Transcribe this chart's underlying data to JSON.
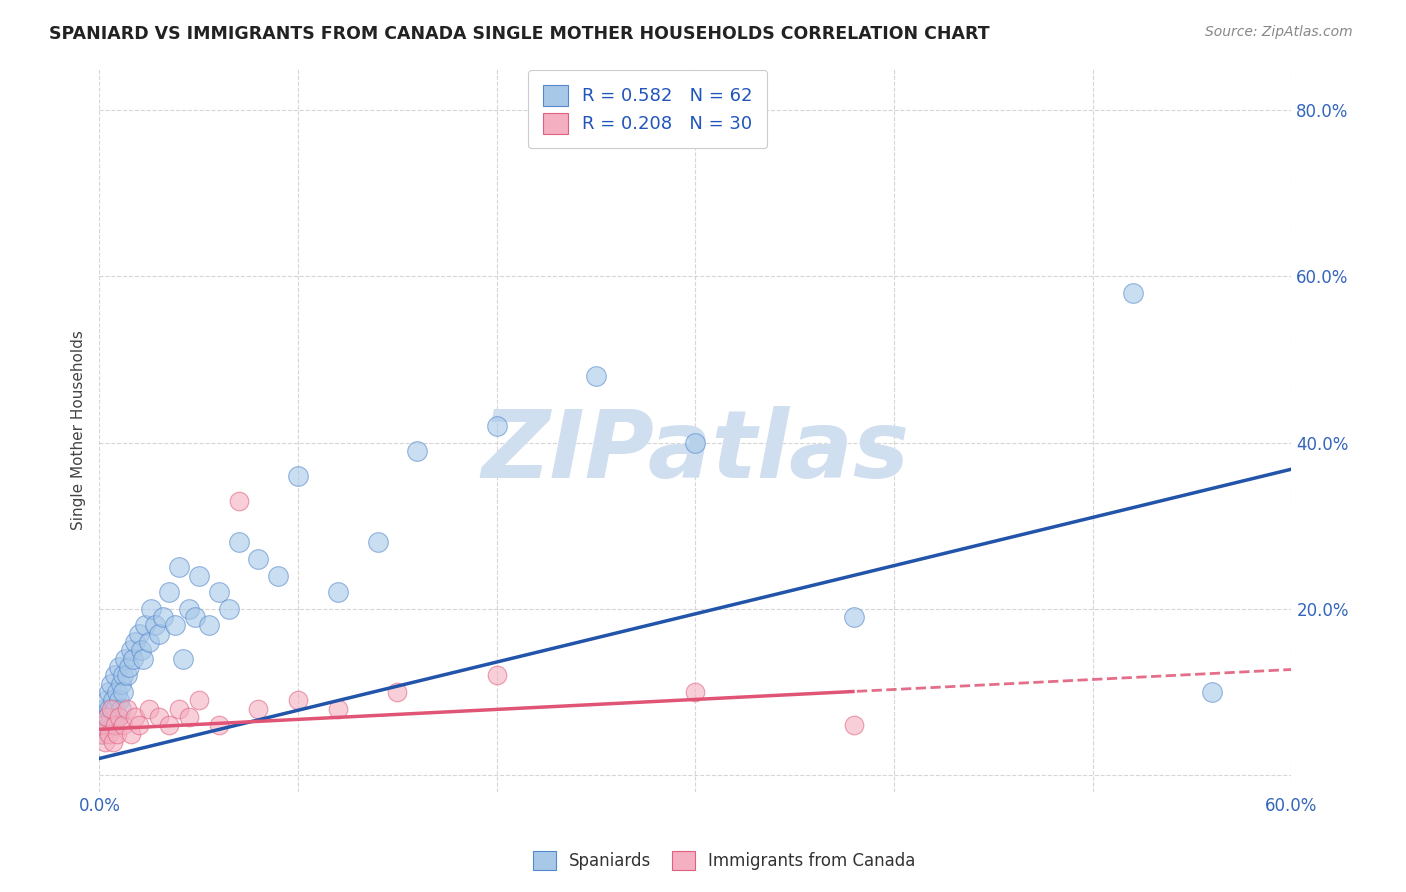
{
  "title": "SPANIARD VS IMMIGRANTS FROM CANADA SINGLE MOTHER HOUSEHOLDS CORRELATION CHART",
  "source": "Source: ZipAtlas.com",
  "ylabel": "Single Mother Households",
  "xlim": [
    0.0,
    0.6
  ],
  "ylim": [
    -0.02,
    0.85
  ],
  "xticks": [
    0.0,
    0.1,
    0.2,
    0.3,
    0.4,
    0.5,
    0.6
  ],
  "ytick_vals": [
    0.0,
    0.2,
    0.4,
    0.6,
    0.8
  ],
  "ytick_labels_right": [
    "",
    "20.0%",
    "40.0%",
    "60.0%",
    "80.0%"
  ],
  "blue_r": 0.582,
  "blue_n": 62,
  "pink_r": 0.208,
  "pink_n": 30,
  "blue_color": "#a8c8e8",
  "pink_color": "#f4afc0",
  "blue_edge_color": "#5588cc",
  "pink_edge_color": "#e06080",
  "blue_line_color": "#2255aa",
  "pink_line_color": "#e05575",
  "watermark_color": "#d0dff0",
  "background_color": "#ffffff",
  "grid_color": "#cccccc",
  "blue_scatter_x": [
    0.001,
    0.002,
    0.002,
    0.003,
    0.003,
    0.004,
    0.004,
    0.005,
    0.005,
    0.005,
    0.006,
    0.006,
    0.007,
    0.007,
    0.008,
    0.008,
    0.009,
    0.009,
    0.01,
    0.01,
    0.011,
    0.011,
    0.012,
    0.012,
    0.013,
    0.014,
    0.015,
    0.016,
    0.017,
    0.018,
    0.02,
    0.021,
    0.022,
    0.023,
    0.025,
    0.026,
    0.028,
    0.03,
    0.032,
    0.035,
    0.038,
    0.04,
    0.042,
    0.045,
    0.048,
    0.05,
    0.055,
    0.06,
    0.065,
    0.07,
    0.08,
    0.09,
    0.1,
    0.12,
    0.14,
    0.16,
    0.2,
    0.25,
    0.3,
    0.38,
    0.52,
    0.56
  ],
  "blue_scatter_y": [
    0.06,
    0.07,
    0.05,
    0.08,
    0.06,
    0.09,
    0.07,
    0.1,
    0.08,
    0.06,
    0.11,
    0.07,
    0.09,
    0.06,
    0.12,
    0.08,
    0.1,
    0.07,
    0.13,
    0.09,
    0.11,
    0.08,
    0.12,
    0.1,
    0.14,
    0.12,
    0.13,
    0.15,
    0.14,
    0.16,
    0.17,
    0.15,
    0.14,
    0.18,
    0.16,
    0.2,
    0.18,
    0.17,
    0.19,
    0.22,
    0.18,
    0.25,
    0.14,
    0.2,
    0.19,
    0.24,
    0.18,
    0.22,
    0.2,
    0.28,
    0.26,
    0.24,
    0.36,
    0.22,
    0.28,
    0.39,
    0.42,
    0.48,
    0.4,
    0.19,
    0.58,
    0.1
  ],
  "pink_scatter_x": [
    0.001,
    0.002,
    0.003,
    0.004,
    0.005,
    0.006,
    0.007,
    0.008,
    0.009,
    0.01,
    0.012,
    0.014,
    0.016,
    0.018,
    0.02,
    0.025,
    0.03,
    0.035,
    0.04,
    0.045,
    0.05,
    0.06,
    0.07,
    0.08,
    0.1,
    0.12,
    0.15,
    0.2,
    0.3,
    0.38
  ],
  "pink_scatter_y": [
    0.05,
    0.06,
    0.04,
    0.07,
    0.05,
    0.08,
    0.04,
    0.06,
    0.05,
    0.07,
    0.06,
    0.08,
    0.05,
    0.07,
    0.06,
    0.08,
    0.07,
    0.06,
    0.08,
    0.07,
    0.09,
    0.06,
    0.33,
    0.08,
    0.09,
    0.08,
    0.1,
    0.12,
    0.1,
    0.06
  ],
  "blue_intercept": 0.02,
  "blue_slope": 0.58,
  "pink_intercept": 0.055,
  "pink_slope": 0.12
}
